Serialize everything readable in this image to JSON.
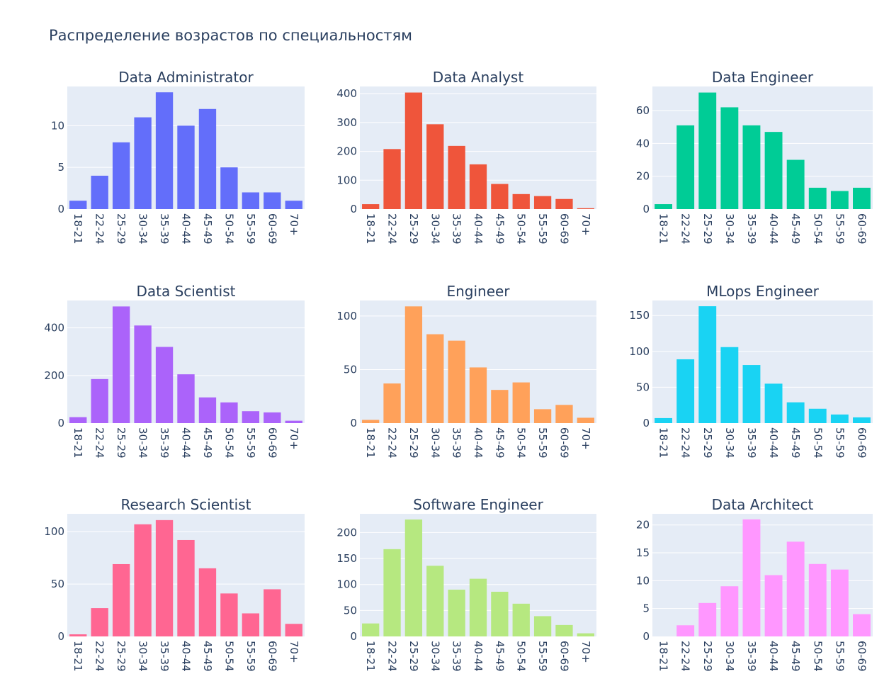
{
  "figure": {
    "title": "Распределение возрастов по специальностям"
  },
  "chart_data": [
    {
      "type": "bar",
      "title": "Data Administrator",
      "color": "#636efa",
      "categories": [
        "18-21",
        "22-24",
        "25-29",
        "30-34",
        "35-39",
        "40-44",
        "45-49",
        "50-54",
        "55-59",
        "60-69",
        "70+"
      ],
      "values": [
        1,
        4,
        8,
        11,
        14,
        10,
        12,
        5,
        2,
        2,
        1
      ],
      "ylim": [
        0,
        14.7
      ],
      "yticks": [
        0,
        5,
        10
      ],
      "grid": true,
      "xlabel": "",
      "ylabel": ""
    },
    {
      "type": "bar",
      "title": "Data Analyst",
      "color": "#ef553b",
      "categories": [
        "18-21",
        "22-24",
        "25-29",
        "30-34",
        "35-39",
        "40-44",
        "45-49",
        "50-54",
        "55-59",
        "60-69",
        "70+"
      ],
      "values": [
        17,
        208,
        404,
        294,
        219,
        155,
        87,
        52,
        45,
        35,
        3
      ],
      "ylim": [
        0,
        425
      ],
      "yticks": [
        0,
        100,
        200,
        300,
        400
      ],
      "grid": true,
      "xlabel": "",
      "ylabel": ""
    },
    {
      "type": "bar",
      "title": "Data Engineer",
      "color": "#00cc96",
      "categories": [
        "18-21",
        "22-24",
        "25-29",
        "30-34",
        "35-39",
        "40-44",
        "45-49",
        "50-54",
        "55-59",
        "60-69"
      ],
      "values": [
        3,
        51,
        71,
        62,
        51,
        47,
        30,
        13,
        11,
        13
      ],
      "ylim": [
        0,
        74.7
      ],
      "yticks": [
        0,
        20,
        40,
        60
      ],
      "grid": true,
      "xlabel": "",
      "ylabel": ""
    },
    {
      "type": "bar",
      "title": "Data Scientist",
      "color": "#ab63fa",
      "categories": [
        "18-21",
        "22-24",
        "25-29",
        "30-34",
        "35-39",
        "40-44",
        "45-49",
        "50-54",
        "55-59",
        "60-69",
        "70+"
      ],
      "values": [
        25,
        185,
        490,
        410,
        320,
        205,
        108,
        87,
        50,
        45,
        10
      ],
      "ylim": [
        0,
        515
      ],
      "yticks": [
        0,
        200,
        400
      ],
      "grid": true,
      "xlabel": "",
      "ylabel": ""
    },
    {
      "type": "bar",
      "title": "Engineer",
      "color": "#ffa15a",
      "categories": [
        "18-21",
        "22-24",
        "25-29",
        "30-34",
        "35-39",
        "40-44",
        "45-49",
        "50-54",
        "55-59",
        "60-69",
        "70+"
      ],
      "values": [
        3,
        37,
        109,
        83,
        77,
        52,
        31,
        38,
        13,
        17,
        5
      ],
      "ylim": [
        0,
        114.5
      ],
      "yticks": [
        0,
        50,
        100
      ],
      "grid": true,
      "xlabel": "",
      "ylabel": ""
    },
    {
      "type": "bar",
      "title": "MLops Engineer",
      "color": "#19d3f3",
      "categories": [
        "18-21",
        "22-24",
        "25-29",
        "30-34",
        "35-39",
        "40-44",
        "45-49",
        "50-54",
        "55-59",
        "60-69"
      ],
      "values": [
        7,
        89,
        163,
        106,
        81,
        55,
        29,
        20,
        12,
        8
      ],
      "ylim": [
        0,
        171
      ],
      "yticks": [
        0,
        50,
        100,
        150
      ],
      "grid": true,
      "xlabel": "",
      "ylabel": ""
    },
    {
      "type": "bar",
      "title": "Research Scientist",
      "color": "#ff6692",
      "categories": [
        "18-21",
        "22-24",
        "25-29",
        "30-34",
        "35-39",
        "40-44",
        "45-49",
        "50-54",
        "55-59",
        "60-69",
        "70+"
      ],
      "values": [
        2,
        27,
        69,
        107,
        111,
        92,
        65,
        41,
        22,
        45,
        12
      ],
      "ylim": [
        0,
        117
      ],
      "yticks": [
        0,
        50,
        100
      ],
      "grid": true,
      "xlabel": "",
      "ylabel": ""
    },
    {
      "type": "bar",
      "title": "Software Engineer",
      "color": "#b6e880",
      "categories": [
        "18-21",
        "22-24",
        "25-29",
        "30-34",
        "35-39",
        "40-44",
        "45-49",
        "50-54",
        "55-59",
        "60-69",
        "70+"
      ],
      "values": [
        25,
        168,
        225,
        136,
        90,
        111,
        86,
        63,
        39,
        22,
        6
      ],
      "ylim": [
        0,
        236
      ],
      "yticks": [
        0,
        50,
        100,
        150,
        200
      ],
      "grid": true,
      "xlabel": "",
      "ylabel": ""
    },
    {
      "type": "bar",
      "title": "Data Architect",
      "color": "#ff97ff",
      "categories": [
        "18-21",
        "22-24",
        "25-29",
        "30-34",
        "35-39",
        "40-44",
        "45-49",
        "50-54",
        "55-59",
        "60-69"
      ],
      "values": [
        0,
        2,
        6,
        9,
        21,
        11,
        17,
        13,
        12,
        4
      ],
      "ylim": [
        0,
        22
      ],
      "yticks": [
        0,
        5,
        10,
        15,
        20
      ],
      "grid": true,
      "xlabel": "",
      "ylabel": ""
    }
  ]
}
